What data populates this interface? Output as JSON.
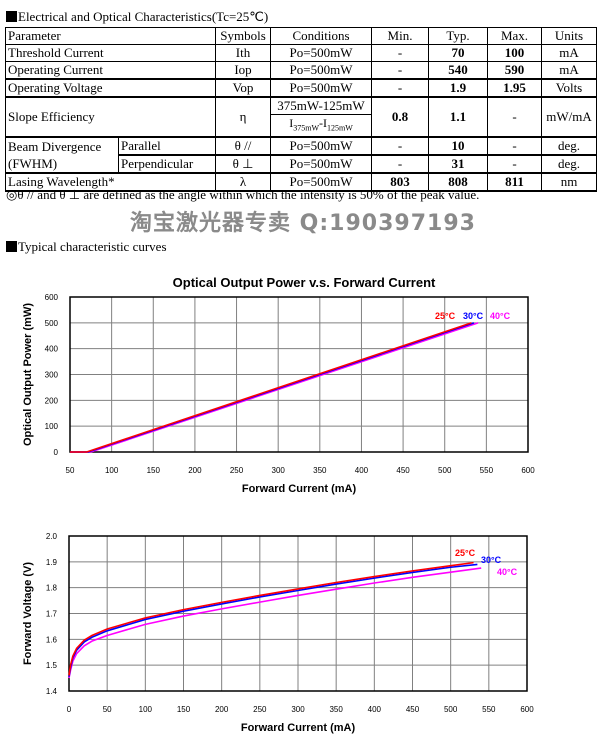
{
  "section1": "Electrical and Optical Characteristics(Tc=25℃)",
  "table": {
    "headers": [
      "Parameter",
      "Symbols",
      "Conditions",
      "Min.",
      "Typ.",
      "Max.",
      "Units"
    ],
    "rows": [
      {
        "param": "Threshold Current",
        "sym": "Ith",
        "cond": "Po=500mW",
        "min": "-",
        "typ": "70",
        "max": "100",
        "unit": "mA"
      },
      {
        "param": "Operating Current",
        "sym": "Iop",
        "cond": "Po=500mW",
        "min": "-",
        "typ": "540",
        "max": "590",
        "unit": "mA"
      },
      {
        "param": "Operating Voltage",
        "sym": "Vop",
        "cond": "Po=500mW",
        "min": "-",
        "typ": "1.9",
        "max": "1.95",
        "unit": "Volts"
      },
      {
        "param": "Slope Efficiency",
        "sym": "η",
        "cond": "375mW-125mW",
        "cond2a": "I",
        "cond2b": "375mW",
        "cond2c": "-I",
        "cond2d": "125mW",
        "min": "0.8",
        "typ": "1.1",
        "max": "-",
        "unit": "mW/mA"
      },
      {
        "param": "Beam Divergence",
        "sub": "Parallel",
        "sym": "θ //",
        "cond": "Po=500mW",
        "min": "-",
        "typ": "10",
        "max": "-",
        "unit": "deg."
      },
      {
        "param": "(FWHM)",
        "sub": "Perpendicular",
        "sym": "θ ⊥",
        "cond": "Po=500mW",
        "min": "-",
        "typ": "31",
        "max": "-",
        "unit": "deg."
      },
      {
        "param": "Lasing Wavelength*",
        "sym": "λ",
        "cond": "Po=500mW",
        "min": "803",
        "typ": "808",
        "max": "811",
        "unit": "nm"
      }
    ]
  },
  "note": "◎θ // and θ ⊥ are defined as the angle within which the intensity is 50% of the peak value.",
  "watermark": "淘宝激光器专卖 Q:190397193",
  "section2": "Typical characteristic curves",
  "chart_data": [
    {
      "type": "line",
      "title": "Optical Output Power v.s. Forward Current",
      "xlabel": "Forward Current (mA)",
      "ylabel": "Optical Output Power (mW)",
      "xlim": [
        50,
        600
      ],
      "ylim": [
        0,
        600
      ],
      "xticks": [
        50,
        100,
        150,
        200,
        250,
        300,
        350,
        400,
        450,
        500,
        550,
        600
      ],
      "yticks": [
        0,
        100,
        200,
        300,
        400,
        500,
        600
      ],
      "grid": true,
      "series": [
        {
          "name": "25°C",
          "color": "#ff0000",
          "x": [
            50,
            70,
            532
          ],
          "y": [
            0,
            0,
            500
          ]
        },
        {
          "name": "30°C",
          "color": "#0000ff",
          "x": [
            50,
            72,
            535
          ],
          "y": [
            0,
            0,
            500
          ]
        },
        {
          "name": "40°C",
          "color": "#ff00ff",
          "x": [
            50,
            75,
            540
          ],
          "y": [
            0,
            0,
            500
          ]
        }
      ]
    },
    {
      "type": "line",
      "title": "",
      "xlabel": "Forward Current (mA)",
      "ylabel": "Forward Voltage (V)",
      "xlim": [
        0,
        600
      ],
      "ylim": [
        1.4,
        2.0
      ],
      "xticks": [
        0,
        50,
        100,
        150,
        200,
        250,
        300,
        350,
        400,
        450,
        500,
        550,
        600
      ],
      "yticks": [
        "1.4",
        "1.5",
        "1.6",
        "1.7",
        "1.8",
        "1.9",
        "2.0"
      ],
      "grid": true,
      "series": [
        {
          "name": "25°C",
          "color": "#ff0000",
          "x": [
            0,
            2,
            5,
            10,
            20,
            30,
            50,
            100,
            150,
            200,
            250,
            300,
            350,
            400,
            450,
            500,
            530
          ],
          "y": [
            1.46,
            1.5,
            1.535,
            1.565,
            1.597,
            1.615,
            1.64,
            1.683,
            1.715,
            1.743,
            1.77,
            1.795,
            1.82,
            1.843,
            1.865,
            1.885,
            1.897
          ]
        },
        {
          "name": "30°C",
          "color": "#0000ff",
          "x": [
            0,
            2,
            5,
            10,
            20,
            30,
            50,
            100,
            150,
            200,
            250,
            300,
            350,
            400,
            450,
            500,
            535
          ],
          "y": [
            1.455,
            1.49,
            1.528,
            1.558,
            1.59,
            1.608,
            1.633,
            1.677,
            1.709,
            1.737,
            1.764,
            1.789,
            1.814,
            1.837,
            1.859,
            1.879,
            1.89
          ]
        },
        {
          "name": "40°C",
          "color": "#ff00ff",
          "x": [
            0,
            2,
            5,
            10,
            20,
            30,
            50,
            100,
            150,
            200,
            250,
            300,
            350,
            400,
            450,
            500,
            540
          ],
          "y": [
            1.45,
            1.48,
            1.515,
            1.545,
            1.575,
            1.593,
            1.615,
            1.658,
            1.69,
            1.718,
            1.744,
            1.77,
            1.794,
            1.818,
            1.84,
            1.86,
            1.876
          ]
        }
      ]
    }
  ]
}
